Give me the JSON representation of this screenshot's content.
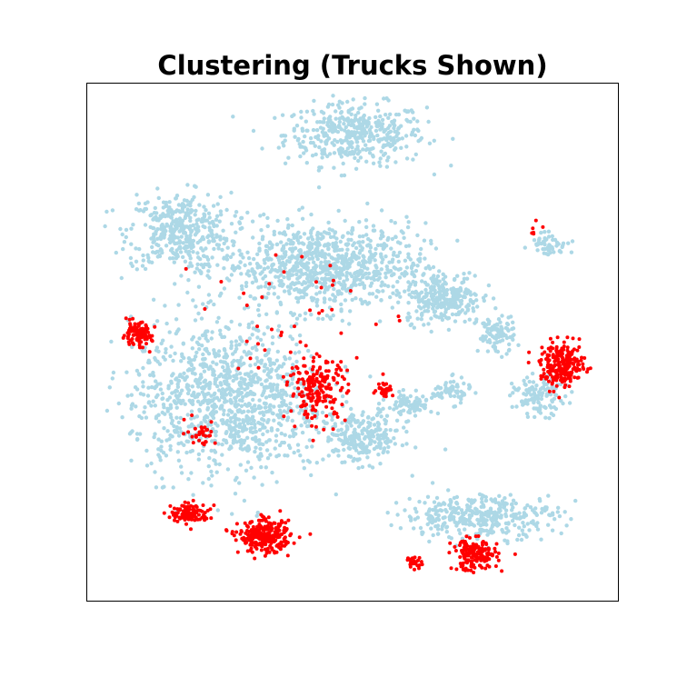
{
  "chart_data": {
    "type": "scatter",
    "title": "Clustering (Trucks Shown)",
    "xlabel": "",
    "ylabel": "",
    "xlim": [
      0,
      100
    ],
    "ylim": [
      0,
      100
    ],
    "grid": false,
    "ticks": false,
    "legend": "none",
    "colors": {
      "other": "#add8e6",
      "trucks": "#ff0000",
      "edge": "#808080"
    },
    "series": [
      {
        "role": "other",
        "clusters": [
          {
            "cx": 50.5,
            "cy": 90.0,
            "sx": 11,
            "sy": 5,
            "n": 420
          },
          {
            "cx": 17.5,
            "cy": 71.5,
            "sx": 8,
            "sy": 6,
            "n": 380
          },
          {
            "cx": 44.5,
            "cy": 64.5,
            "sx": 16,
            "sy": 7,
            "n": 900
          },
          {
            "cx": 67.0,
            "cy": 58.5,
            "sx": 6,
            "sy": 4,
            "n": 260
          },
          {
            "cx": 26.5,
            "cy": 39.0,
            "sx": 15,
            "sy": 12,
            "n": 1100
          },
          {
            "cx": 52.0,
            "cy": 31.5,
            "sx": 6,
            "sy": 4,
            "n": 240
          },
          {
            "cx": 61.0,
            "cy": 38.0,
            "sx": 3.5,
            "sy": 2,
            "n": 80
          },
          {
            "cx": 68.5,
            "cy": 40.5,
            "sx": 3,
            "sy": 2,
            "n": 60
          },
          {
            "cx": 77.0,
            "cy": 51.5,
            "sx": 3,
            "sy": 3,
            "n": 90
          },
          {
            "cx": 85.0,
            "cy": 39.5,
            "sx": 4,
            "sy": 3,
            "n": 120
          },
          {
            "cx": 87.0,
            "cy": 69.0,
            "sx": 3,
            "sy": 2,
            "n": 50
          },
          {
            "cx": 74.0,
            "cy": 16.5,
            "sx": 12,
            "sy": 3.5,
            "n": 360
          }
        ]
      },
      {
        "role": "trucks",
        "clusters": [
          {
            "cx": 9.5,
            "cy": 51.5,
            "sx": 2.3,
            "sy": 1.8,
            "n": 110
          },
          {
            "cx": 43.5,
            "cy": 41.0,
            "sx": 4.5,
            "sy": 5,
            "n": 190
          },
          {
            "cx": 56.0,
            "cy": 41.0,
            "sx": 1.3,
            "sy": 1.2,
            "n": 30
          },
          {
            "cx": 21.5,
            "cy": 32.5,
            "sx": 2.5,
            "sy": 2,
            "n": 30
          },
          {
            "cx": 19.5,
            "cy": 17.0,
            "sx": 3,
            "sy": 1.5,
            "n": 120
          },
          {
            "cx": 33.5,
            "cy": 12.5,
            "sx": 4,
            "sy": 2.5,
            "n": 280
          },
          {
            "cx": 73.0,
            "cy": 9.0,
            "sx": 3.5,
            "sy": 2.5,
            "n": 180
          },
          {
            "cx": 61.5,
            "cy": 7.5,
            "sx": 1.2,
            "sy": 1.0,
            "n": 25
          },
          {
            "cx": 89.5,
            "cy": 45.5,
            "sx": 3.5,
            "sy": 3.5,
            "n": 230
          },
          {
            "cx": 84.5,
            "cy": 72.0,
            "sx": 1.5,
            "sy": 1.0,
            "n": 6
          },
          {
            "cx": 40.0,
            "cy": 55.0,
            "sx": 15,
            "sy": 12,
            "n": 45
          }
        ]
      }
    ]
  }
}
